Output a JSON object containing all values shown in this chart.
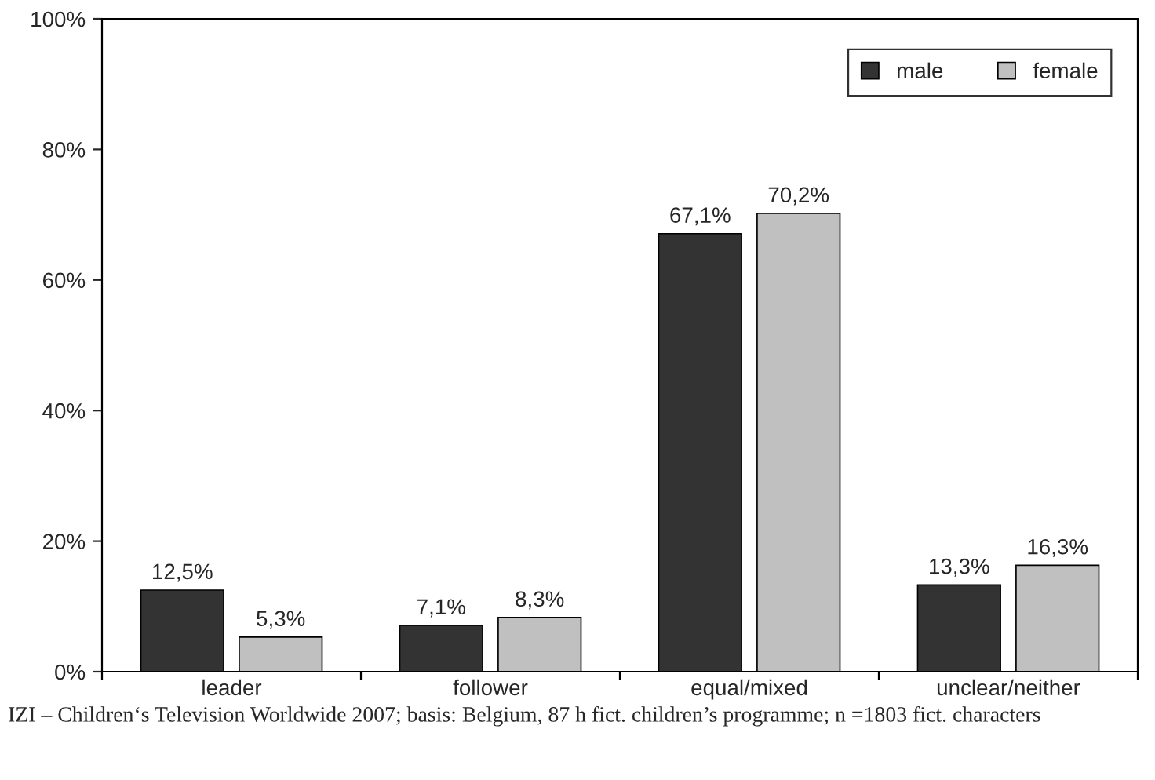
{
  "chart_data": {
    "type": "bar",
    "categories": [
      "leader",
      "follower",
      "equal/mixed",
      "unclear/neither"
    ],
    "series": [
      {
        "name": "male",
        "color": "#333333",
        "values": [
          12.5,
          7.1,
          67.1,
          13.3
        ],
        "value_labels": [
          "12,5%",
          "7,1%",
          "67,1%",
          "13,3%"
        ]
      },
      {
        "name": "female",
        "color": "#c0c0c0",
        "values": [
          5.3,
          8.3,
          70.2,
          16.3
        ],
        "value_labels": [
          "5,3%",
          "8,3%",
          "70,2%",
          "16,3%"
        ]
      }
    ],
    "ylim": [
      0,
      100
    ],
    "yticks": [
      {
        "value": 0,
        "label": "0%"
      },
      {
        "value": 20,
        "label": "20%"
      },
      {
        "value": 40,
        "label": "40%"
      },
      {
        "value": 60,
        "label": "60%"
      },
      {
        "value": 80,
        "label": "80%"
      },
      {
        "value": 100,
        "label": "100%"
      }
    ],
    "grid": false,
    "legend": "top right",
    "annotations": [
      "IZI – Children‘s Television Worldwide 2007; basis: Belgium, 87 h fict. children’s programme; n =1803 fict. characters"
    ]
  }
}
